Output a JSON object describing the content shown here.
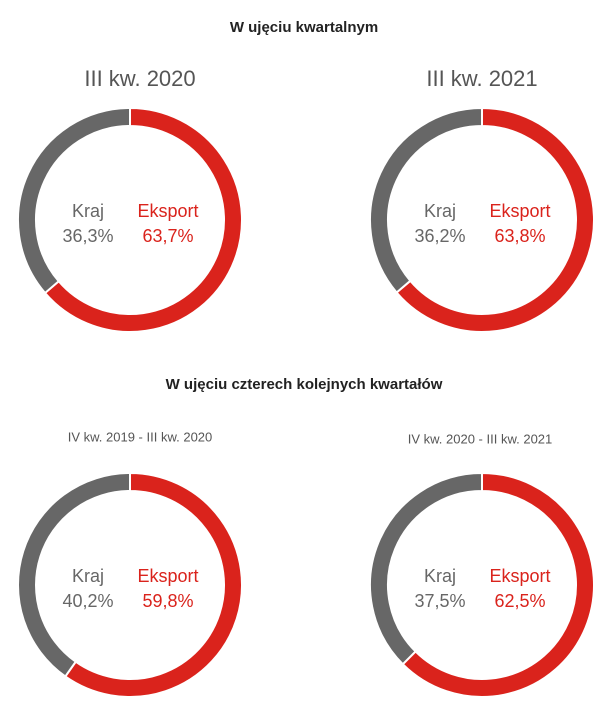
{
  "headings": [
    "W ujęciu kwartalnym",
    "W ujęciu czterech kolejnych kwartałów"
  ],
  "chart_data": [
    {
      "type": "donut",
      "title": "III kw. 2020",
      "categories": [
        "Eksport",
        "Kraj"
      ],
      "values": [
        63.7,
        36.3
      ],
      "value_labels": [
        "63,7%",
        "36,3%"
      ],
      "colors": [
        "#da231c",
        "#676767"
      ]
    },
    {
      "type": "donut",
      "title": "III kw. 2021",
      "categories": [
        "Eksport",
        "Kraj"
      ],
      "values": [
        63.8,
        36.2
      ],
      "value_labels": [
        "63,8%",
        "36,2%"
      ],
      "colors": [
        "#da231c",
        "#676767"
      ]
    },
    {
      "type": "donut",
      "title": "IV kw. 2019 - III kw. 2020",
      "categories": [
        "Eksport",
        "Kraj"
      ],
      "values": [
        59.8,
        40.2
      ],
      "value_labels": [
        "59,8%",
        "40,2%"
      ],
      "colors": [
        "#da231c",
        "#676767"
      ]
    },
    {
      "type": "donut",
      "title": "IV kw. 2020 - III kw. 2021",
      "categories": [
        "Eksport",
        "Kraj"
      ],
      "values": [
        62.5,
        37.5
      ],
      "value_labels": [
        "62,5%",
        "37,5%"
      ],
      "colors": [
        "#da231c",
        "#676767"
      ]
    }
  ]
}
